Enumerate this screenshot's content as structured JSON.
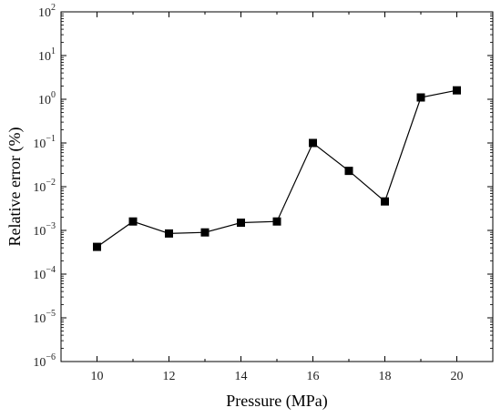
{
  "chart_data": {
    "type": "line",
    "title": "",
    "xlabel": "Pressure (MPa)",
    "ylabel": "Relative error (%)",
    "xlim": [
      9,
      21
    ],
    "ylim_log10": [
      -6,
      2
    ],
    "yscale": "log",
    "x_ticks": [
      10,
      12,
      14,
      16,
      18,
      20
    ],
    "y_tick_base": "10",
    "y_tick_exponents": [
      "-6",
      "-5",
      "-4",
      "-3",
      "-2",
      "-1",
      "0",
      "1",
      "2"
    ],
    "grid": false,
    "legend": "none",
    "marker": "square",
    "line_color": "#000000",
    "x": [
      10,
      11,
      12,
      13,
      14,
      15,
      16,
      17,
      18,
      19,
      20
    ],
    "y": [
      0.00042,
      0.0016,
      0.00085,
      0.0009,
      0.0015,
      0.0016,
      0.1,
      0.023,
      0.0046,
      1.1,
      1.6
    ]
  }
}
